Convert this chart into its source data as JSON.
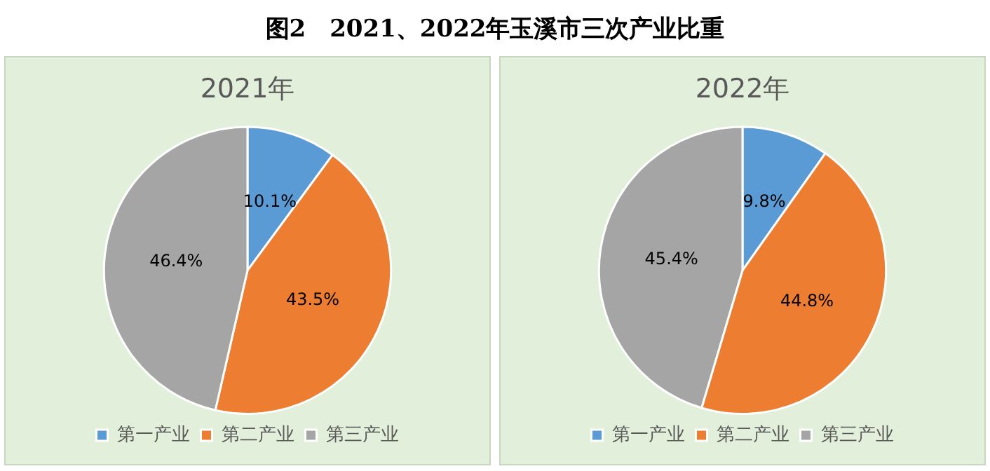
{
  "chart_data": [
    {
      "type": "pie",
      "title": "2021年",
      "annotations": [
        "图2　2021、2022年玉溪市三次产业比重"
      ],
      "categories": [
        "第一产业",
        "第二产业",
        "第三产业"
      ],
      "values": [
        10.1,
        43.5,
        46.4
      ],
      "colors": [
        "#5b9bd5",
        "#ed7d31",
        "#a5a5a5"
      ],
      "value_labels": [
        "10.1%",
        "43.5%",
        "46.4%"
      ],
      "legend": "bottom"
    },
    {
      "type": "pie",
      "title": "2022年",
      "categories": [
        "第一产业",
        "第二产业",
        "第三产业"
      ],
      "values": [
        9.8,
        44.8,
        45.4
      ],
      "colors": [
        "#5b9bd5",
        "#ed7d31",
        "#a5a5a5"
      ],
      "value_labels": [
        "9.8%",
        "44.8%",
        "45.4%"
      ],
      "legend": "bottom"
    }
  ]
}
